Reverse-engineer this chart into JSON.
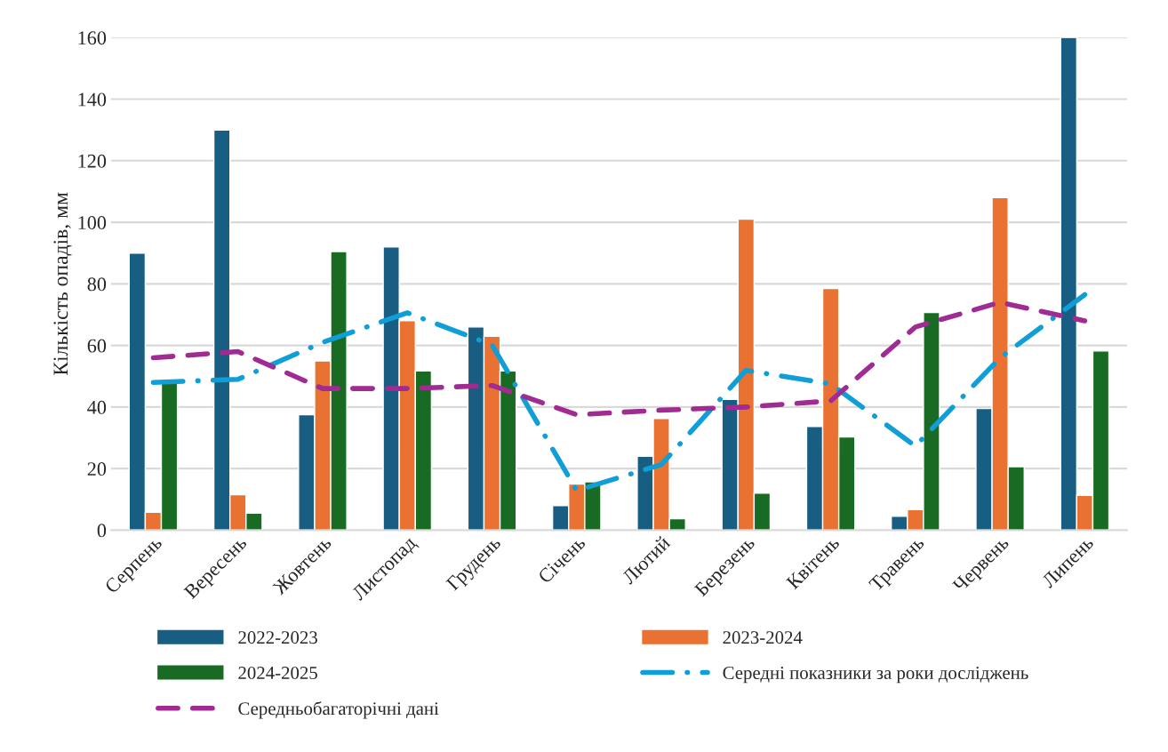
{
  "chart_data": {
    "type": "bar",
    "ylabel": "Кількість опадів, мм",
    "categories": [
      "Серпень",
      "Вересень",
      "Жовтень",
      "Листопад",
      "Грудень",
      "Січень",
      "Лютий",
      "Березень",
      "Квітень",
      "Травень",
      "Червень",
      "Липень"
    ],
    "series": [
      {
        "name": "2022-2023",
        "color": "#175e82",
        "values": [
          90,
          130,
          37.5,
          92,
          66,
          8,
          24,
          42.5,
          33.7,
          4.5,
          39.5,
          160
        ]
      },
      {
        "name": "2023-2024",
        "color": "#e97132",
        "values": [
          5.8,
          11.5,
          55,
          68,
          63,
          15,
          36.3,
          101,
          78.5,
          6.7,
          108,
          11.3
        ]
      },
      {
        "name": "2024-2025",
        "color": "#196b24",
        "values": [
          48,
          5.5,
          90.5,
          51.7,
          51.7,
          15.7,
          3.7,
          12,
          30.3,
          70.7,
          20.6,
          58.2
        ]
      },
      {
        "name": "Середні показники за роки досліджень",
        "type": "line",
        "line_style": "dashdot",
        "color": "#0f9ed5",
        "values": [
          48,
          49,
          61,
          70.6,
          60.2,
          12.9,
          21.3,
          51.9,
          47.5,
          27.3,
          56,
          76.5
        ]
      },
      {
        "name": "Середньобагаторічні дані",
        "type": "line",
        "line_style": "dashed",
        "color": "#a02b93",
        "values": [
          56,
          58,
          46,
          46,
          47,
          37.5,
          39,
          40,
          42,
          66,
          74,
          68
        ]
      }
    ],
    "ylim": [
      0,
      160
    ],
    "yticks": [
      0,
      20,
      40,
      60,
      80,
      100,
      120,
      140,
      160
    ],
    "grid": "y",
    "legend": "bottom"
  }
}
